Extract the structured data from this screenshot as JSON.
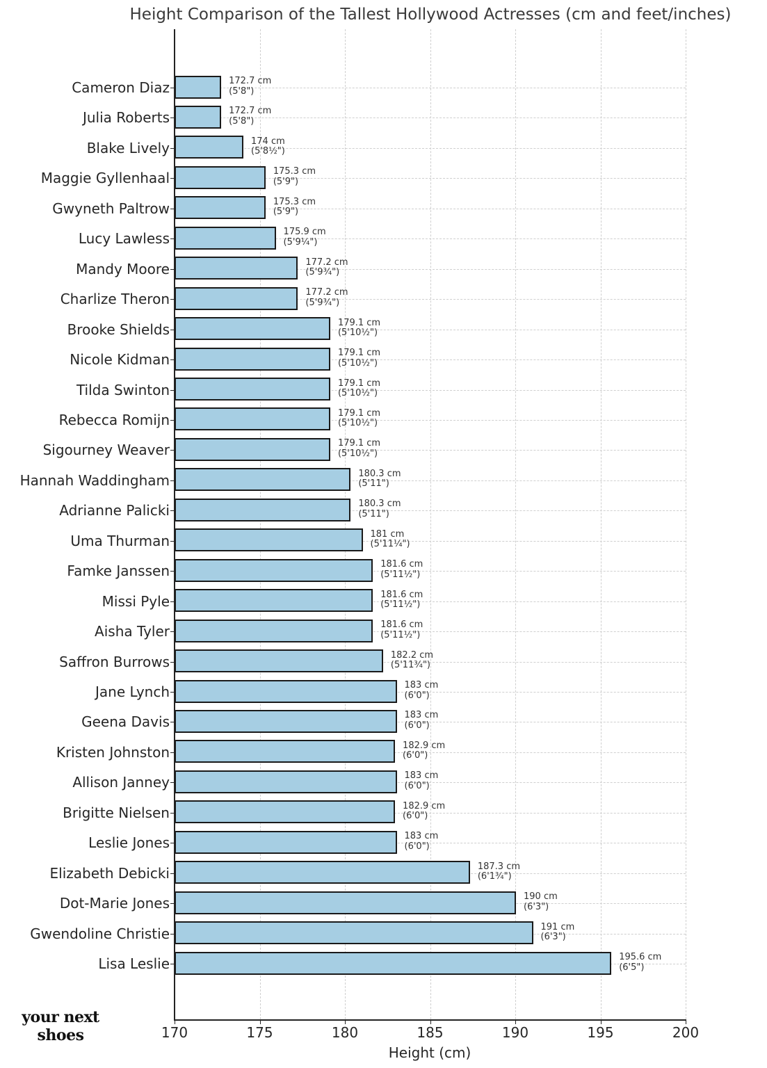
{
  "chart_data": {
    "type": "bar",
    "orientation": "horizontal",
    "title": "Height Comparison of the Tallest Hollywood Actresses (cm and feet/inches)",
    "xlabel": "Height (cm)",
    "ylabel": "",
    "xlim": [
      170,
      200
    ],
    "xticks": [
      "170",
      "175",
      "180",
      "185",
      "190",
      "195",
      "200"
    ],
    "grid": true,
    "legend": null,
    "bar_color": "#a6cee3",
    "edge_color": "#1a1a1a",
    "categories": [
      "Cameron Diaz",
      "Julia Roberts",
      "Blake Lively",
      "Maggie Gyllenhaal",
      "Gwyneth Paltrow",
      "Lucy Lawless",
      "Mandy Moore",
      "Charlize Theron",
      "Brooke Shields",
      "Nicole Kidman",
      "Tilda Swinton",
      "Rebecca Romijn",
      "Sigourney Weaver",
      "Hannah Waddingham",
      "Adrianne Palicki",
      "Uma Thurman",
      "Famke Janssen",
      "Missi Pyle",
      "Aisha Tyler",
      "Saffron Burrows",
      "Jane Lynch",
      "Geena Davis",
      "Kristen Johnston",
      "Allison Janney",
      "Brigitte Nielsen",
      "Leslie Jones",
      "Elizabeth Debicki",
      "Dot-Marie Jones",
      "Gwendoline Christie",
      "Lisa Leslie"
    ],
    "values": [
      172.7,
      172.7,
      174,
      175.3,
      175.3,
      175.9,
      177.2,
      177.2,
      179.1,
      179.1,
      179.1,
      179.1,
      179.1,
      180.3,
      180.3,
      181,
      181.6,
      181.6,
      181.6,
      182.2,
      183,
      183,
      182.9,
      183,
      182.9,
      183,
      187.3,
      190,
      191,
      195.6
    ],
    "value_labels_cm": [
      "172.7 cm",
      "172.7 cm",
      "174 cm",
      "175.3 cm",
      "175.3 cm",
      "175.9 cm",
      "177.2 cm",
      "177.2 cm",
      "179.1 cm",
      "179.1 cm",
      "179.1 cm",
      "179.1 cm",
      "179.1 cm",
      "180.3 cm",
      "180.3 cm",
      "181 cm",
      "181.6 cm",
      "181.6 cm",
      "181.6 cm",
      "182.2 cm",
      "183 cm",
      "183 cm",
      "182.9 cm",
      "183 cm",
      "182.9 cm",
      "183 cm",
      "187.3 cm",
      "190 cm",
      "191 cm",
      "195.6 cm"
    ],
    "value_labels_ft": [
      "(5'8\")",
      "(5'8\")",
      "(5'8½\")",
      "(5'9\")",
      "(5'9\")",
      "(5'9¼\")",
      "(5'9¾\")",
      "(5'9¾\")",
      "(5'10½\")",
      "(5'10½\")",
      "(5'10½\")",
      "(5'10½\")",
      "(5'10½\")",
      "(5'11\")",
      "(5'11\")",
      "(5'11¼\")",
      "(5'11½\")",
      "(5'11½\")",
      "(5'11½\")",
      "(5'11¾\")",
      "(6'0\")",
      "(6'0\")",
      "(6'0\")",
      "(6'0\")",
      "(6'0\")",
      "(6'0\")",
      "(6'1¾\")",
      "(6'3\")",
      "(6'3\")",
      "(6'5\")"
    ]
  },
  "watermark": {
    "line1": "your next",
    "line2": "shoes"
  }
}
